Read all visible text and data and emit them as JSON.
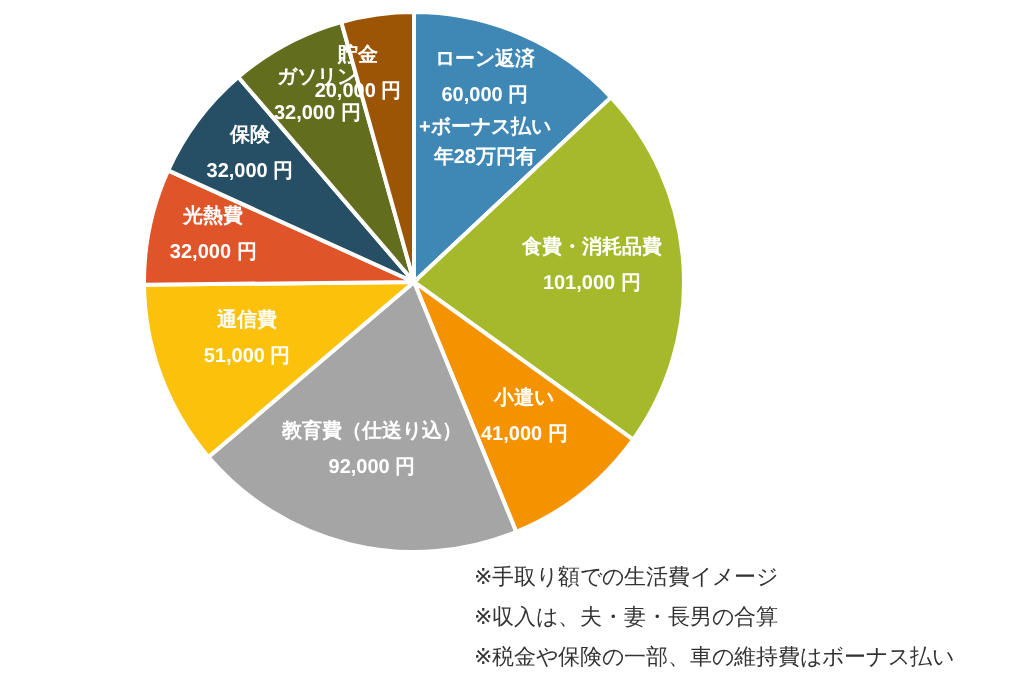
{
  "chart_data": {
    "type": "pie",
    "categories": [
      "ローン返済",
      "食費・消耗品費",
      "小遣い",
      "教育費（仕送り込）",
      "通信費",
      "光熱費",
      "保険",
      "ガソリン",
      "貯金"
    ],
    "values": [
      60000,
      101000,
      41000,
      92000,
      51000,
      32000,
      32000,
      32000,
      20000
    ],
    "value_labels": [
      "60,000 円",
      "101,000 円",
      "41,000 円",
      "92,000 円",
      "51,000 円",
      "32,000 円",
      "32,000 円",
      "32,000 円",
      "20,000 円"
    ],
    "colors": [
      "#3f87b5",
      "#a5b92a",
      "#f59200",
      "#a5a5a5",
      "#fcc10b",
      "#e0542a",
      "#264f66",
      "#636d1e",
      "#9c5505"
    ],
    "annotations": [
      "+ボーナス払い",
      "年28万円有",
      "※手取り額での生活費イメージ",
      "※収入は、夫・妻・長男の合算",
      "※税金や保険の一部、車の維持費はボーナス払い"
    ]
  }
}
